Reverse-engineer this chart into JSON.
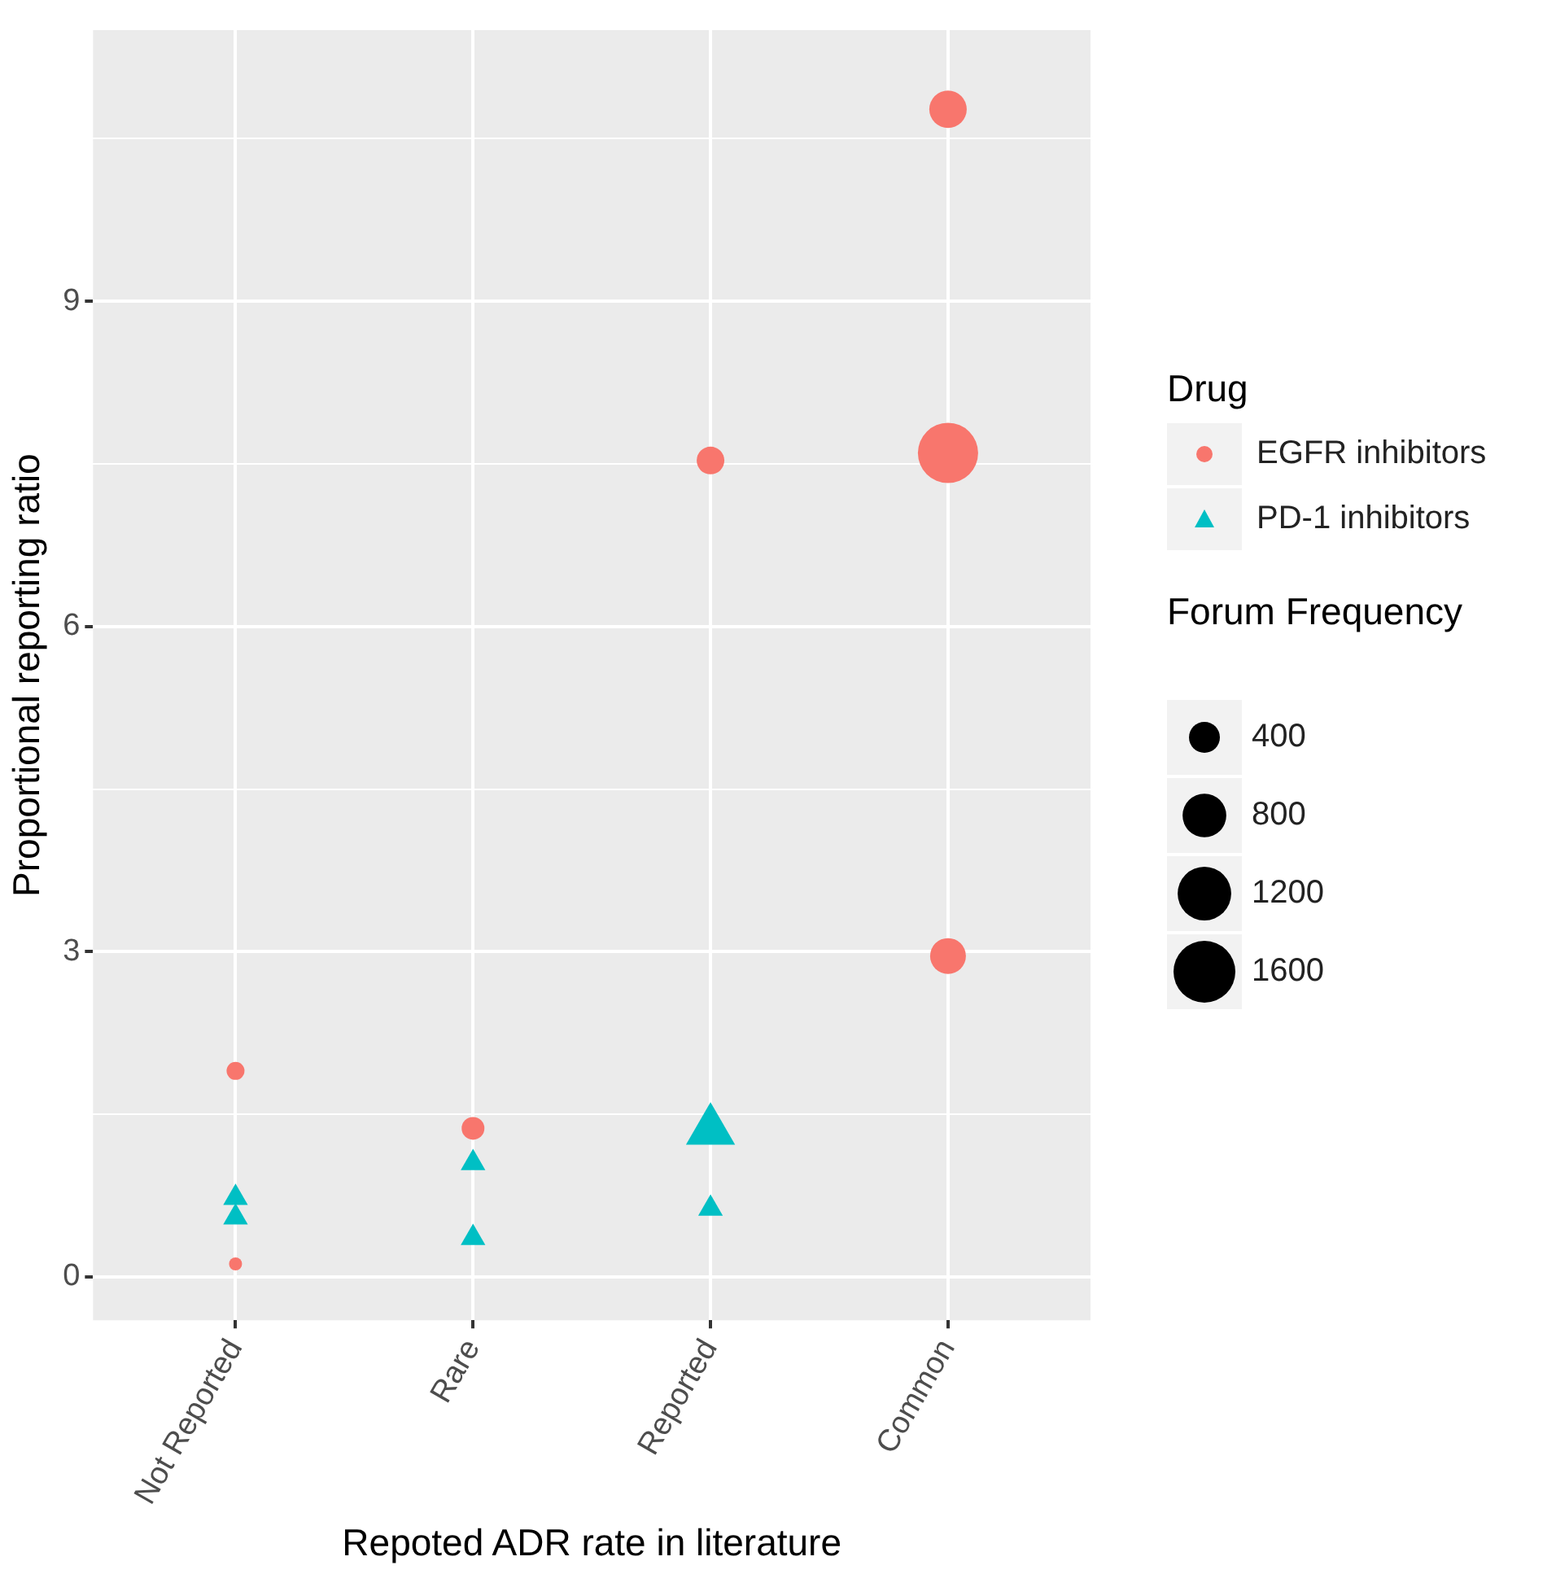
{
  "chart_data": {
    "type": "bubble",
    "xlabel": "Repoted ADR rate in literature",
    "ylabel": "Proportional reporting ratio",
    "legend_title": "Drug",
    "categories": [
      "Not Reported",
      "Rare",
      "Reported",
      "Common"
    ],
    "ylim": [
      -0.4,
      11.5
    ],
    "yticks": [
      0,
      {
        "value": 1.5,
        "label": null
      },
      3,
      {
        "value": 4.5,
        "label": null
      },
      6,
      {
        "value": 7.5,
        "label": null
      },
      9,
      {
        "value": 10.5,
        "label": null
      }
    ],
    "grid": true,
    "legend": "right",
    "size_legend": [
      400,
      800,
      1200,
      1600
    ],
    "annotations": [
      "Forum Frequency"
    ],
    "series": [
      {
        "name": "EGFR inhibitors",
        "color": "#f8766d",
        "marker": "circle",
        "x": [
          "Not Reported",
          "Not Reported",
          "Rare",
          "Reported",
          "Common",
          "Common",
          "Common"
        ],
        "values": [
          1.9,
          0.12,
          1.37,
          7.53,
          10.77,
          7.6,
          2.96
        ],
        "sizes": [
          134,
          71,
          217,
          320,
          586,
          1517,
          536
        ]
      },
      {
        "name": "PD-1 inhibitors",
        "color": "#00bfc4",
        "marker": "triangle",
        "x": [
          "Not Reported",
          "Not Reported",
          "Rare",
          "Rare",
          "Reported",
          "Reported"
        ],
        "values": [
          0.73,
          0.55,
          1.05,
          0.36,
          1.35,
          0.63
        ],
        "sizes": [
          140,
          140,
          140,
          140,
          557,
          140
        ]
      }
    ]
  }
}
